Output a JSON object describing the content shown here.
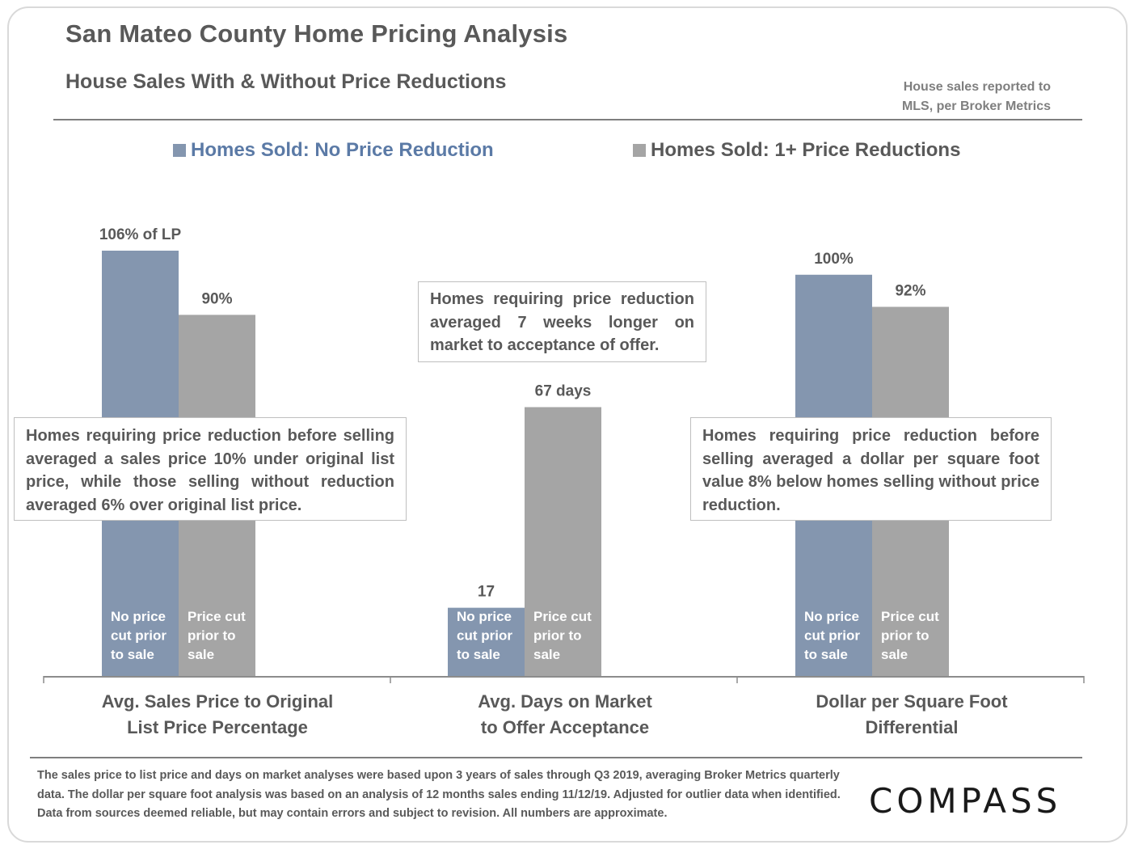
{
  "header": {
    "title": "San Mateo County Home Pricing Analysis",
    "subtitle": "House Sales With & Without Price Reductions",
    "source_line1": "House sales reported to",
    "source_line2": "MLS, per Broker Metrics"
  },
  "colors": {
    "no_reduction": "#8496af",
    "with_reduction": "#a5a5a5",
    "legend_no_reduction_text": "#5b7aa6",
    "text": "#595959"
  },
  "chart_data": {
    "type": "bar",
    "title": "House Sales With & Without Price Reductions",
    "xlabel": "",
    "ylabel": "",
    "ylim": [
      0,
      106
    ],
    "grid": false,
    "legend_position": "top",
    "categories": [
      "Avg. Sales Price to Original List Price Percentage",
      "Avg. Days on Market to Offer Acceptance",
      "Dollar per Square Foot Differential"
    ],
    "category_lines": [
      [
        "Avg. Sales Price to Original",
        "List Price Percentage"
      ],
      [
        "Avg. Days on Market",
        "to Offer Acceptance"
      ],
      [
        "Dollar per Square Foot",
        "Differential"
      ]
    ],
    "series": [
      {
        "name": "Homes Sold: No Price Reduction",
        "values": [
          106,
          17,
          100
        ],
        "data_labels": [
          "106% of LP",
          "17",
          "100%"
        ],
        "inbar_label": [
          "No price",
          "cut prior",
          "to sale"
        ]
      },
      {
        "name": "Homes Sold: 1+ Price Reductions",
        "values": [
          90,
          67,
          92
        ],
        "data_labels": [
          "90%",
          "67 days",
          "92%"
        ],
        "inbar_label": [
          "Price cut",
          "prior to",
          "sale"
        ]
      }
    ],
    "annotations": [
      "Homes requiring price reduction before selling averaged a sales price 10% under original list price, while those selling without reduction averaged 6% over original list price.",
      "Homes requiring price reduction averaged 7 weeks longer on market to acceptance of offer.",
      "Homes requiring price reduction before selling averaged a dollar per square foot value 8% below homes selling without price reduction."
    ]
  },
  "footnote": "The sales price to list price and days on market analyses were based upon 3 years of sales through Q3 2019, averaging Broker Metrics quarterly data. The dollar per square foot analysis was based on an analysis of 12 months sales ending 11/12/19.  Adjusted for outlier data when identified. Data from sources deemed reliable, but may contain errors and subject to revision. All numbers are approximate.",
  "logo": {
    "text": "COMPASS"
  }
}
